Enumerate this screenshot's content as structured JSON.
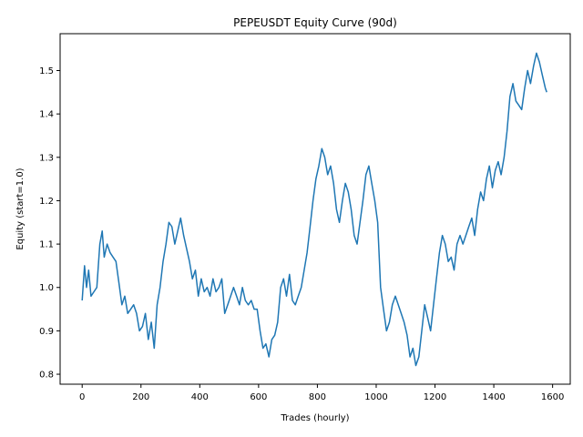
{
  "chart_data": {
    "type": "line",
    "title": "PEPEUSDT Equity Curve (90d)",
    "xlabel": "Trades (hourly)",
    "ylabel": "Equity (start=1.0)",
    "xlim": [
      -75,
      1660
    ],
    "ylim": [
      0.777,
      1.585
    ],
    "xticks": [
      0,
      200,
      400,
      600,
      800,
      1000,
      1200,
      1400,
      1600
    ],
    "yticks": [
      0.8,
      0.9,
      1.0,
      1.1,
      1.2,
      1.3,
      1.4,
      1.5
    ],
    "xtick_labels": [
      "0",
      "200",
      "400",
      "600",
      "800",
      "1000",
      "1200",
      "1400",
      "1600"
    ],
    "ytick_labels": [
      "0.8",
      "0.9",
      "1.0",
      "1.1",
      "1.2",
      "1.3",
      "1.4",
      "1.5"
    ],
    "grid": false,
    "series": [
      {
        "color": "#1f77b4",
        "x": [
          0,
          8,
          15,
          22,
          30,
          40,
          50,
          60,
          68,
          75,
          85,
          95,
          105,
          115,
          125,
          135,
          145,
          155,
          165,
          175,
          185,
          195,
          205,
          215,
          225,
          235,
          245,
          255,
          265,
          275,
          285,
          295,
          305,
          315,
          325,
          335,
          345,
          355,
          365,
          375,
          385,
          395,
          405,
          415,
          425,
          435,
          445,
          455,
          465,
          475,
          485,
          495,
          505,
          515,
          525,
          535,
          545,
          555,
          565,
          575,
          585,
          595,
          605,
          615,
          625,
          635,
          645,
          655,
          665,
          675,
          685,
          695,
          705,
          715,
          725,
          735,
          745,
          755,
          765,
          775,
          785,
          795,
          805,
          815,
          825,
          835,
          845,
          855,
          865,
          875,
          885,
          895,
          905,
          915,
          925,
          935,
          945,
          955,
          965,
          975,
          985,
          995,
          1005,
          1015,
          1025,
          1035,
          1045,
          1055,
          1065,
          1075,
          1085,
          1095,
          1105,
          1115,
          1125,
          1135,
          1145,
          1155,
          1165,
          1175,
          1185,
          1195,
          1205,
          1215,
          1225,
          1235,
          1245,
          1255,
          1265,
          1275,
          1285,
          1295,
          1305,
          1315,
          1325,
          1335,
          1345,
          1355,
          1365,
          1375,
          1385,
          1395,
          1405,
          1415,
          1425,
          1435,
          1445,
          1455,
          1465,
          1475,
          1485,
          1495,
          1505,
          1515,
          1525,
          1535,
          1545,
          1555,
          1565,
          1575,
          1580
        ],
        "values": [
          0.97,
          1.05,
          1.0,
          1.04,
          0.98,
          0.99,
          1.0,
          1.1,
          1.13,
          1.07,
          1.1,
          1.08,
          1.07,
          1.06,
          1.01,
          0.96,
          0.98,
          0.94,
          0.95,
          0.96,
          0.94,
          0.9,
          0.91,
          0.94,
          0.88,
          0.92,
          0.86,
          0.96,
          1.0,
          1.06,
          1.1,
          1.15,
          1.14,
          1.1,
          1.13,
          1.16,
          1.12,
          1.09,
          1.06,
          1.02,
          1.04,
          0.98,
          1.02,
          0.99,
          1.0,
          0.98,
          1.02,
          0.99,
          1.0,
          1.02,
          0.94,
          0.96,
          0.98,
          1.0,
          0.98,
          0.96,
          1.0,
          0.97,
          0.96,
          0.97,
          0.95,
          0.95,
          0.9,
          0.86,
          0.87,
          0.84,
          0.88,
          0.89,
          0.92,
          1.0,
          1.02,
          0.98,
          1.03,
          0.97,
          0.96,
          0.98,
          1.0,
          1.04,
          1.08,
          1.14,
          1.2,
          1.25,
          1.28,
          1.32,
          1.3,
          1.26,
          1.28,
          1.24,
          1.18,
          1.15,
          1.2,
          1.24,
          1.22,
          1.18,
          1.12,
          1.1,
          1.15,
          1.2,
          1.26,
          1.28,
          1.24,
          1.2,
          1.15,
          1.0,
          0.95,
          0.9,
          0.92,
          0.96,
          0.98,
          0.96,
          0.94,
          0.92,
          0.89,
          0.84,
          0.86,
          0.82,
          0.84,
          0.9,
          0.96,
          0.93,
          0.9,
          0.96,
          1.02,
          1.08,
          1.12,
          1.1,
          1.06,
          1.07,
          1.04,
          1.1,
          1.12,
          1.1,
          1.12,
          1.14,
          1.16,
          1.12,
          1.18,
          1.22,
          1.2,
          1.25,
          1.28,
          1.23,
          1.27,
          1.29,
          1.26,
          1.3,
          1.36,
          1.44,
          1.47,
          1.43,
          1.42,
          1.41,
          1.46,
          1.5,
          1.47,
          1.51,
          1.54,
          1.52,
          1.49,
          1.46,
          1.45
        ]
      }
    ]
  }
}
